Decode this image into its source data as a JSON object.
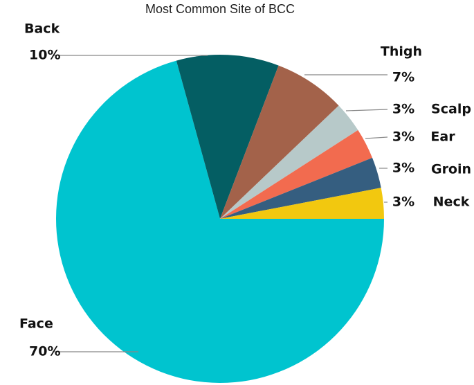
{
  "chart_data": {
    "type": "pie",
    "title": "Most Common Site of BCC",
    "categories": [
      "Face",
      "Back",
      "Thigh",
      "Scalp",
      "Ear",
      "Groin",
      "Neck"
    ],
    "values": [
      70,
      10,
      7,
      3,
      3,
      3,
      3
    ],
    "value_labels": [
      "70%",
      "10%",
      "7%",
      "3%",
      "3%",
      "3%",
      "3%"
    ],
    "colors": [
      "#00c4cf",
      "#045e63",
      "#a3624a",
      "#b7c9c9",
      "#f26b4f",
      "#355e80",
      "#f2c80f"
    ]
  }
}
